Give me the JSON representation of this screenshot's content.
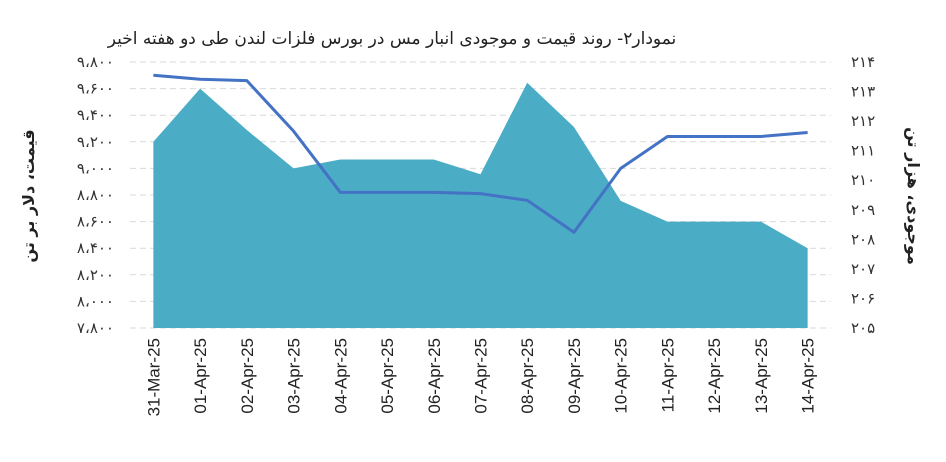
{
  "chart_data": {
    "type": "area",
    "title": "نمودار۲- روند قیمت و موجودی انبار مس در بورس فلزات لندن طی دو هفته اخیر",
    "categories": [
      "31-Mar-25",
      "01-Apr-25",
      "02-Apr-25",
      "03-Apr-25",
      "04-Apr-25",
      "05-Apr-25",
      "06-Apr-25",
      "07-Apr-25",
      "08-Apr-25",
      "09-Apr-25",
      "10-Apr-25",
      "11-Apr-25",
      "12-Apr-25",
      "13-Apr-25",
      "14-Apr-25"
    ],
    "ylabel_left": "قیمت، دلار بر تن",
    "ylabel_right": "موجودی، هزار تن",
    "ylim_left": [
      7800,
      9800
    ],
    "yticks_left": [
      "۷،۸۰۰",
      "۸،۰۰۰",
      "۸،۲۰۰",
      "۸،۴۰۰",
      "۸،۶۰۰",
      "۸،۸۰۰",
      "۹،۰۰۰",
      "۹،۲۰۰",
      "۹،۴۰۰",
      "۹،۶۰۰",
      "۹،۸۰۰"
    ],
    "ylim_right": [
      205,
      214
    ],
    "yticks_right": [
      "۲۰۵",
      "۲۰۶",
      "۲۰۷",
      "۲۰۸",
      "۲۰۹",
      "۲۱۰",
      "۲۱۱",
      "۲۱۲",
      "۲۱۳",
      "۲۱۴"
    ],
    "grid": true,
    "series": [
      {
        "type": "area",
        "axis": "right",
        "color": "#4BACC6",
        "values": [
          211.3,
          213.1,
          211.7,
          210.4,
          210.7,
          210.7,
          210.7,
          210.2,
          213.3,
          211.8,
          209.3,
          208.6,
          208.6,
          208.6,
          207.7
        ]
      },
      {
        "type": "line",
        "axis": "left",
        "color": "#4472C4",
        "values": [
          9700,
          9670,
          9660,
          9280,
          8820,
          8820,
          8820,
          8810,
          8760,
          8520,
          9000,
          9240,
          9240,
          9240,
          9270
        ]
      }
    ]
  }
}
